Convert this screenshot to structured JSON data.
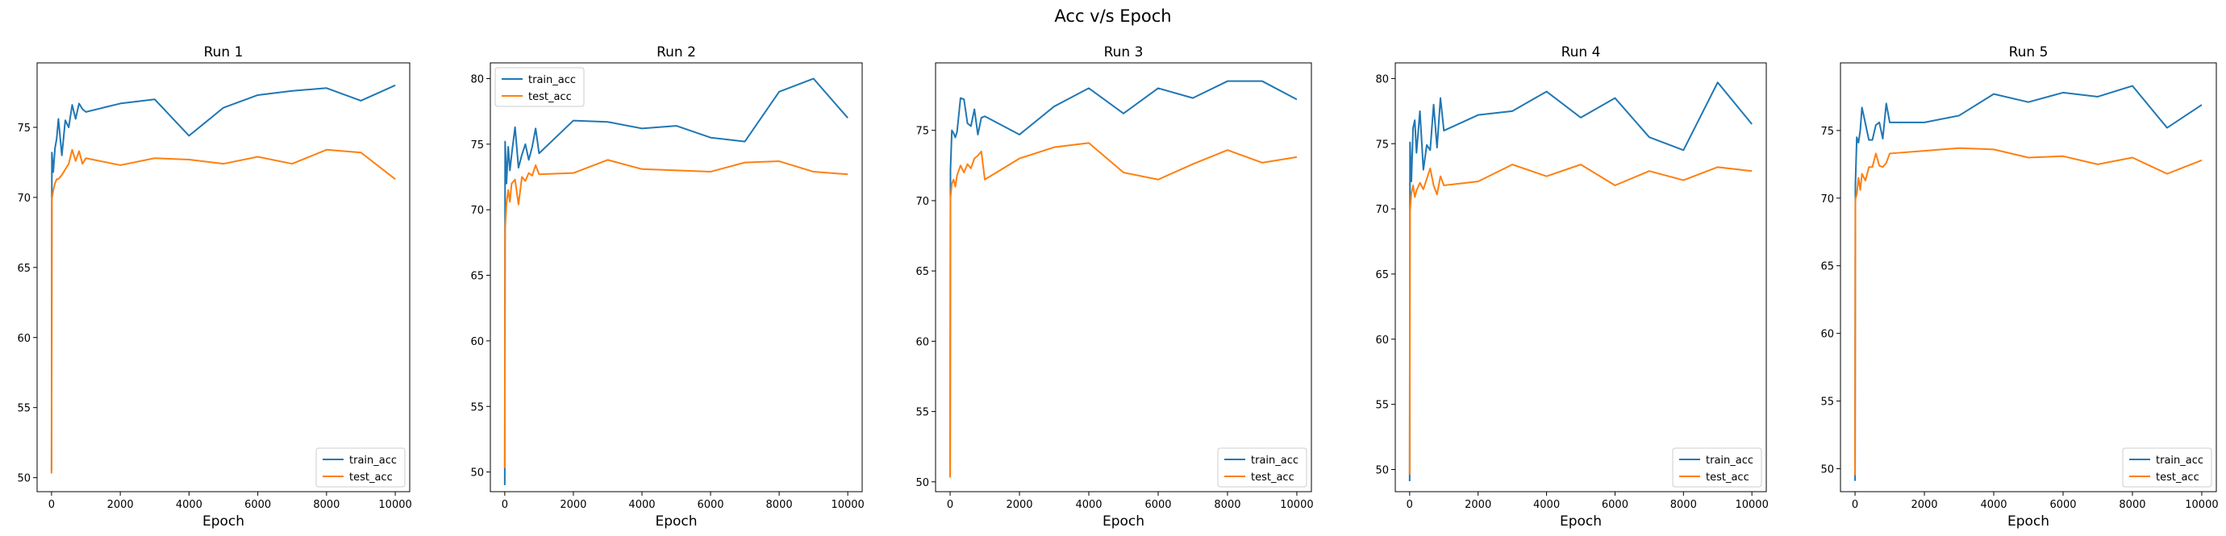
{
  "figure": {
    "title": "Acc v/s Epoch"
  },
  "colors": {
    "train": "#1f77b4",
    "test": "#ff7f0e",
    "axes": "#000000",
    "legend_border": "#cccccc"
  },
  "chart_data": [
    {
      "type": "line",
      "title": "Run 1",
      "xlabel": "Epoch",
      "ylabel": "",
      "xlim": [
        -420,
        10420
      ],
      "ylim": [
        49.0,
        79.6
      ],
      "xticks": [
        0,
        2000,
        4000,
        6000,
        8000,
        10000
      ],
      "yticks": [
        50,
        55,
        60,
        65,
        70,
        75
      ],
      "legend_loc": "lower-right",
      "grid": false,
      "series": [
        {
          "name": "train_acc",
          "x": [
            0,
            10,
            50,
            100,
            150,
            200,
            300,
            400,
            500,
            600,
            700,
            800,
            900,
            1000,
            2000,
            3000,
            4000,
            5000,
            6000,
            7000,
            8000,
            9000,
            10000
          ],
          "y": [
            50.5,
            73.2,
            71.8,
            73.5,
            74.2,
            75.6,
            73.0,
            75.5,
            75.0,
            76.6,
            75.6,
            76.7,
            76.3,
            76.1,
            76.7,
            77.0,
            74.4,
            76.4,
            77.3,
            77.6,
            77.8,
            76.9,
            78.0
          ]
        },
        {
          "name": "test_acc",
          "x": [
            0,
            10,
            50,
            100,
            150,
            200,
            300,
            400,
            500,
            600,
            700,
            800,
            900,
            1000,
            2000,
            3000,
            4000,
            5000,
            6000,
            7000,
            8000,
            9000,
            10000
          ],
          "y": [
            50.3,
            69.9,
            70.5,
            71.0,
            71.3,
            71.3,
            71.6,
            72.0,
            72.4,
            73.4,
            72.6,
            73.3,
            72.4,
            72.8,
            72.3,
            72.8,
            72.7,
            72.4,
            72.9,
            72.4,
            73.4,
            73.2,
            71.3
          ]
        }
      ]
    },
    {
      "type": "line",
      "title": "Run 2",
      "xlabel": "Epoch",
      "ylabel": "",
      "xlim": [
        -420,
        10420
      ],
      "ylim": [
        48.5,
        81.2
      ],
      "xticks": [
        0,
        2000,
        4000,
        6000,
        8000,
        10000
      ],
      "yticks": [
        50,
        55,
        60,
        65,
        70,
        75,
        80
      ],
      "legend_loc": "upper-left",
      "grid": false,
      "series": [
        {
          "name": "train_acc",
          "x": [
            0,
            10,
            50,
            100,
            150,
            200,
            300,
            400,
            500,
            600,
            700,
            800,
            900,
            1000,
            2000,
            3000,
            4000,
            5000,
            6000,
            7000,
            8000,
            9000,
            10000
          ],
          "y": [
            49.0,
            75.2,
            72.0,
            74.8,
            73.0,
            74.2,
            76.3,
            73.2,
            74.2,
            75.0,
            73.8,
            74.8,
            76.2,
            74.3,
            76.8,
            76.7,
            76.2,
            76.4,
            75.5,
            75.2,
            79.0,
            80.0,
            77.0
          ]
        },
        {
          "name": "test_acc",
          "x": [
            0,
            10,
            50,
            100,
            150,
            200,
            300,
            400,
            500,
            600,
            700,
            800,
            900,
            1000,
            2000,
            3000,
            4000,
            5000,
            6000,
            7000,
            8000,
            9000,
            10000
          ],
          "y": [
            50.3,
            68.5,
            70.5,
            71.5,
            70.6,
            72.0,
            72.3,
            70.4,
            72.5,
            72.2,
            72.8,
            72.6,
            73.4,
            72.7,
            72.8,
            73.8,
            73.1,
            73.0,
            72.9,
            73.6,
            73.7,
            72.9,
            72.7
          ]
        }
      ]
    },
    {
      "type": "line",
      "title": "Run 3",
      "xlabel": "Epoch",
      "ylabel": "",
      "xlim": [
        -420,
        10420
      ],
      "ylim": [
        49.3,
        79.8
      ],
      "xticks": [
        0,
        2000,
        4000,
        6000,
        8000,
        10000
      ],
      "yticks": [
        50,
        55,
        60,
        65,
        70,
        75
      ],
      "legend_loc": "lower-right",
      "grid": false,
      "series": [
        {
          "name": "train_acc",
          "x": [
            0,
            10,
            50,
            100,
            150,
            200,
            300,
            400,
            500,
            600,
            700,
            800,
            900,
            1000,
            2000,
            3000,
            4000,
            5000,
            6000,
            7000,
            8000,
            9000,
            10000
          ],
          "y": [
            50.5,
            72.2,
            75.0,
            74.8,
            74.5,
            74.9,
            77.3,
            77.2,
            75.5,
            75.3,
            76.5,
            74.7,
            75.9,
            76.0,
            74.7,
            76.7,
            78.0,
            76.2,
            78.0,
            77.3,
            78.5,
            78.5,
            77.2
          ]
        },
        {
          "name": "test_acc",
          "x": [
            0,
            10,
            50,
            100,
            150,
            200,
            300,
            400,
            500,
            600,
            700,
            800,
            900,
            1000,
            2000,
            3000,
            4000,
            5000,
            6000,
            7000,
            8000,
            9000,
            10000
          ],
          "y": [
            50.3,
            70.2,
            71.2,
            71.5,
            71.0,
            71.8,
            72.5,
            72.0,
            72.6,
            72.3,
            73.0,
            73.2,
            73.5,
            71.5,
            73.0,
            73.8,
            74.1,
            72.0,
            71.5,
            72.6,
            73.6,
            72.7,
            73.1
          ]
        }
      ]
    },
    {
      "type": "line",
      "title": "Run 4",
      "xlabel": "Epoch",
      "ylabel": "",
      "xlim": [
        -420,
        10420
      ],
      "ylim": [
        48.3,
        81.2
      ],
      "xticks": [
        0,
        2000,
        4000,
        6000,
        8000,
        10000
      ],
      "yticks": [
        50,
        55,
        60,
        65,
        70,
        75,
        80
      ],
      "legend_loc": "lower-right",
      "grid": false,
      "series": [
        {
          "name": "train_acc",
          "x": [
            0,
            10,
            50,
            100,
            150,
            200,
            300,
            400,
            500,
            600,
            700,
            800,
            900,
            1000,
            2000,
            3000,
            4000,
            5000,
            6000,
            7000,
            8000,
            9000,
            10000
          ],
          "y": [
            49.1,
            75.1,
            72.1,
            76.2,
            76.8,
            74.3,
            77.5,
            73.0,
            74.9,
            74.5,
            78.0,
            74.7,
            78.5,
            76.0,
            77.2,
            77.5,
            79.0,
            77.0,
            78.5,
            75.5,
            74.5,
            79.7,
            76.5
          ]
        },
        {
          "name": "test_acc",
          "x": [
            0,
            10,
            50,
            100,
            150,
            200,
            300,
            400,
            500,
            600,
            700,
            800,
            900,
            1000,
            2000,
            3000,
            4000,
            5000,
            6000,
            7000,
            8000,
            9000,
            10000
          ],
          "y": [
            49.6,
            69.8,
            71.2,
            71.8,
            70.9,
            71.4,
            72.0,
            71.5,
            72.3,
            73.1,
            71.8,
            71.1,
            72.5,
            71.8,
            72.1,
            73.4,
            72.5,
            73.4,
            71.8,
            72.9,
            72.2,
            73.2,
            72.9
          ]
        }
      ]
    },
    {
      "type": "line",
      "title": "Run 5",
      "xlabel": "Epoch",
      "ylabel": "",
      "xlim": [
        -420,
        10420
      ],
      "ylim": [
        48.3,
        80.0
      ],
      "xticks": [
        0,
        2000,
        4000,
        6000,
        8000,
        10000
      ],
      "yticks": [
        50,
        55,
        60,
        65,
        70,
        75
      ],
      "legend_loc": "lower-right",
      "grid": false,
      "series": [
        {
          "name": "train_acc",
          "x": [
            0,
            10,
            50,
            100,
            150,
            200,
            300,
            400,
            500,
            600,
            700,
            800,
            900,
            1000,
            2000,
            3000,
            4000,
            5000,
            6000,
            7000,
            8000,
            9000,
            10000
          ],
          "y": [
            49.1,
            71.0,
            74.5,
            74.1,
            75.0,
            76.7,
            75.5,
            74.3,
            74.3,
            75.4,
            75.6,
            74.4,
            77.0,
            75.6,
            75.6,
            76.1,
            77.7,
            77.1,
            77.8,
            77.5,
            78.3,
            75.2,
            76.9
          ]
        },
        {
          "name": "test_acc",
          "x": [
            0,
            10,
            50,
            100,
            150,
            200,
            300,
            400,
            500,
            600,
            700,
            800,
            900,
            1000,
            2000,
            3000,
            4000,
            5000,
            6000,
            7000,
            8000,
            9000,
            10000
          ],
          "y": [
            49.5,
            69.9,
            70.3,
            71.5,
            70.6,
            71.8,
            71.3,
            72.3,
            72.3,
            73.3,
            72.4,
            72.3,
            72.6,
            73.3,
            73.5,
            73.7,
            73.6,
            73.0,
            73.1,
            72.5,
            73.0,
            71.8,
            72.8
          ]
        }
      ]
    }
  ]
}
